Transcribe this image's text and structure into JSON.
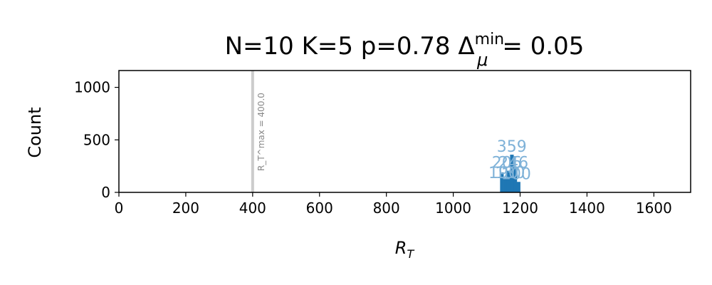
{
  "chart_data": {
    "type": "bar",
    "title": "N=10 K=5 p=0.78 Δ",
    "title_sup": "min",
    "title_sub": "μ",
    "title_suffix": "= 0.05",
    "xlabel": "R",
    "xlabel_sub": "T",
    "ylabel": "Count",
    "xlim": [
      0,
      1710
    ],
    "ylim": [
      0,
      1160
    ],
    "xticks": [
      0,
      200,
      400,
      600,
      800,
      1000,
      1200,
      1400,
      1600
    ],
    "yticks": [
      0,
      500,
      1000
    ],
    "grid": false,
    "bar_color": "#1f77b4",
    "bins": [
      {
        "x0": 1140,
        "x1": 1150,
        "count": 190
      },
      {
        "x0": 1150,
        "x1": 1160,
        "count": 130
      },
      {
        "x0": 1160,
        "x1": 1170,
        "count": 206
      },
      {
        "x0": 1170,
        "x1": 1180,
        "count": 359
      },
      {
        "x0": 1180,
        "x1": 1190,
        "count": 246
      },
      {
        "x0": 1190,
        "x1": 1200,
        "count": 100
      }
    ],
    "bar_labels": [
      {
        "text": "359",
        "x": 1175,
        "y": 359
      },
      {
        "text": "206",
        "x": 1160,
        "y": 206
      },
      {
        "text": "246",
        "x": 1180,
        "y": 206
      },
      {
        "text": "190",
        "x": 1150,
        "y": 110
      },
      {
        "text": "130",
        "x": 1170,
        "y": 110
      },
      {
        "text": "100",
        "x": 1188,
        "y": 100
      }
    ],
    "vline": {
      "x": 400.0,
      "color": "#cccccc",
      "label": "R_T^max = 400.0"
    }
  }
}
